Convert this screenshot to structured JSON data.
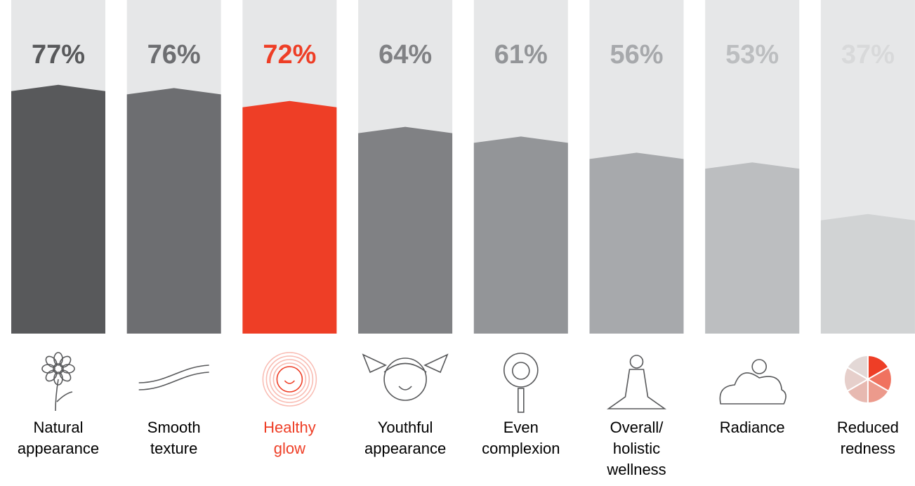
{
  "chart_data": {
    "type": "bar",
    "categories": [
      "Natural\nappearance",
      "Smooth\ntexture",
      "Healthy\nglow",
      "Youthful\nappearance",
      "Even\ncomplexion",
      "Overall/\nholistic\nwellness",
      "Radiance",
      "Reduced\nredness"
    ],
    "values": [
      77,
      76,
      72,
      64,
      61,
      56,
      53,
      37
    ],
    "value_labels": [
      "77%",
      "76%",
      "72%",
      "64%",
      "61%",
      "56%",
      "53%",
      "37%"
    ],
    "colors": [
      "#58595b",
      "#6d6e71",
      "#ee3e26",
      "#808184",
      "#939598",
      "#a7a9ac",
      "#bcbec0",
      "#d1d3d4"
    ],
    "label_colors": [
      "#58595b",
      "#6d6e71",
      "#ee3e26",
      "#808184",
      "#939598",
      "#a7a9ac",
      "#bcbec0",
      "#d8d9da"
    ],
    "category_colors": [
      "#000000",
      "#000000",
      "#ee3e26",
      "#000000",
      "#000000",
      "#000000",
      "#000000",
      "#000000"
    ],
    "ylim": [
      0,
      100
    ]
  }
}
